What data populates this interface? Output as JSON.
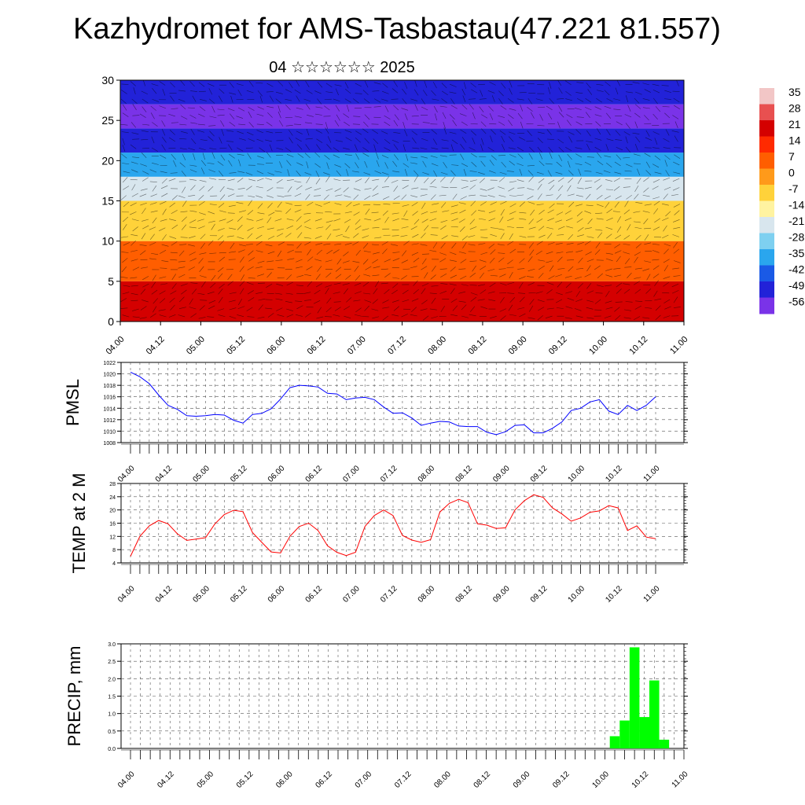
{
  "title": "Kazhydromet for AMS-Tasbastau(47.221 81.557)",
  "subtitle": "04 ☆☆☆☆☆☆ 2025",
  "colorbar": {
    "labels": [
      "35",
      "28",
      "21",
      "14",
      "7",
      "0",
      "-7",
      "-14",
      "-21",
      "-28",
      "-35",
      "-42",
      "-49",
      "-56"
    ],
    "colors": [
      "#f2c6c6",
      "#e85050",
      "#d40000",
      "#ff2a00",
      "#ff5e00",
      "#ff9a1a",
      "#ffd23a",
      "#fff3a0",
      "#d8e6ee",
      "#7ed0f0",
      "#2aa6ee",
      "#1a5ae6",
      "#2222d8",
      "#7a33e8"
    ]
  },
  "chart_data": [
    {
      "type": "heatmap",
      "name": "vertical-profile",
      "ylim": [
        0,
        30
      ],
      "yticks": [
        "0",
        "5",
        "10",
        "15",
        "20",
        "25",
        "30"
      ],
      "xticks": [
        "04.00",
        "04.12",
        "05.00",
        "05.12",
        "06.00",
        "06.12",
        "07.00",
        "07.12",
        "08.00",
        "08.12",
        "09.00",
        "09.12",
        "10.00",
        "10.12",
        "11.00"
      ],
      "bands": [
        {
          "from": 0,
          "to": 5,
          "value": 21
        },
        {
          "from": 5,
          "to": 10,
          "value": 10
        },
        {
          "from": 10,
          "to": 15,
          "value": -5
        },
        {
          "from": 15,
          "to": 18,
          "value": -18
        },
        {
          "from": 18,
          "to": 21,
          "value": -35
        },
        {
          "from": 21,
          "to": 24,
          "value": -52
        },
        {
          "from": 24,
          "to": 27,
          "value": -56
        },
        {
          "from": 27,
          "to": 30,
          "value": -52
        }
      ]
    },
    {
      "type": "line",
      "name": "pmsl",
      "ylabel": "PMSL",
      "ylim": [
        1008,
        1022
      ],
      "yticks": [
        "1008",
        "1010",
        "1012",
        "1014",
        "1016",
        "1018",
        "1020",
        "1022"
      ],
      "xticks": [
        "04.00",
        "04.12",
        "05.00",
        "05.12",
        "06.00",
        "06.12",
        "07.00",
        "07.12",
        "08.00",
        "08.12",
        "09.00",
        "09.12",
        "10.00",
        "10.12",
        "11.00"
      ],
      "color": "#0000ff",
      "values": [
        1020.3,
        1019.5,
        1018.3,
        1016.3,
        1014.5,
        1013.8,
        1012.7,
        1012.6,
        1012.7,
        1012.9,
        1012.8,
        1011.9,
        1011.4,
        1012.9,
        1013.1,
        1013.9,
        1015.6,
        1017.6,
        1018.0,
        1017.9,
        1017.7,
        1016.6,
        1016.5,
        1015.5,
        1015.8,
        1015.9,
        1015.5,
        1014.2,
        1013.1,
        1013.2,
        1012.3,
        1011.0,
        1011.4,
        1011.7,
        1011.6,
        1010.9,
        1010.8,
        1010.8,
        1009.8,
        1009.4,
        1009.9,
        1011.0,
        1011.1,
        1009.7,
        1009.7,
        1010.5,
        1011.6,
        1013.6,
        1014.0,
        1015.1,
        1015.5,
        1013.5,
        1012.9,
        1014.5,
        1013.6,
        1014.5,
        1016.0
      ]
    },
    {
      "type": "line",
      "name": "temp-2m",
      "ylabel": "TEMP at 2 M",
      "ylim": [
        4,
        28
      ],
      "yticks": [
        "4",
        "8",
        "12",
        "16",
        "20",
        "24",
        "28"
      ],
      "xticks": [
        "04.00",
        "04.12",
        "05.00",
        "05.12",
        "06.00",
        "06.12",
        "07.00",
        "07.12",
        "08.00",
        "08.12",
        "09.00",
        "09.12",
        "10.00",
        "10.12",
        "11.00"
      ],
      "color": "#ff0000",
      "values": [
        6.0,
        12.0,
        15.2,
        16.8,
        15.8,
        12.8,
        10.8,
        11.2,
        11.6,
        15.8,
        18.6,
        19.9,
        19.5,
        13.2,
        10.2,
        7.3,
        7.0,
        12.0,
        15.0,
        16.0,
        13.8,
        9.2,
        7.2,
        6.2,
        7.2,
        15.0,
        18.3,
        20.0,
        18.3,
        12.3,
        10.9,
        10.2,
        11.0,
        19.4,
        22.0,
        23.2,
        22.2,
        15.8,
        15.4,
        14.4,
        14.6,
        20.0,
        22.8,
        24.6,
        23.8,
        20.6,
        18.8,
        16.6,
        17.6,
        19.3,
        19.7,
        21.3,
        20.6,
        13.8,
        15.2,
        11.8,
        11.3
      ]
    },
    {
      "type": "bar",
      "name": "precip",
      "ylabel": "PRECIP, mm",
      "ylim": [
        0,
        3.0
      ],
      "yticks": [
        "0.0",
        "0.5",
        "1.0",
        "1.5",
        "2.0",
        "2.5",
        "3.0"
      ],
      "xticks": [
        "04.00",
        "04.12",
        "05.00",
        "05.12",
        "06.00",
        "06.12",
        "07.00",
        "07.12",
        "08.00",
        "08.12",
        "09.00",
        "09.12",
        "10.00",
        "10.12",
        "11.00"
      ],
      "color": "#00ff00",
      "values": [
        0,
        0,
        0,
        0,
        0,
        0,
        0,
        0,
        0,
        0,
        0,
        0,
        0,
        0,
        0,
        0,
        0,
        0,
        0,
        0,
        0,
        0,
        0,
        0,
        0,
        0,
        0,
        0,
        0,
        0,
        0,
        0,
        0,
        0,
        0,
        0,
        0,
        0,
        0,
        0,
        0,
        0,
        0,
        0,
        0,
        0,
        0,
        0,
        0,
        0.35,
        0.8,
        2.9,
        0.9,
        1.95,
        0.25,
        0,
        0
      ]
    }
  ]
}
